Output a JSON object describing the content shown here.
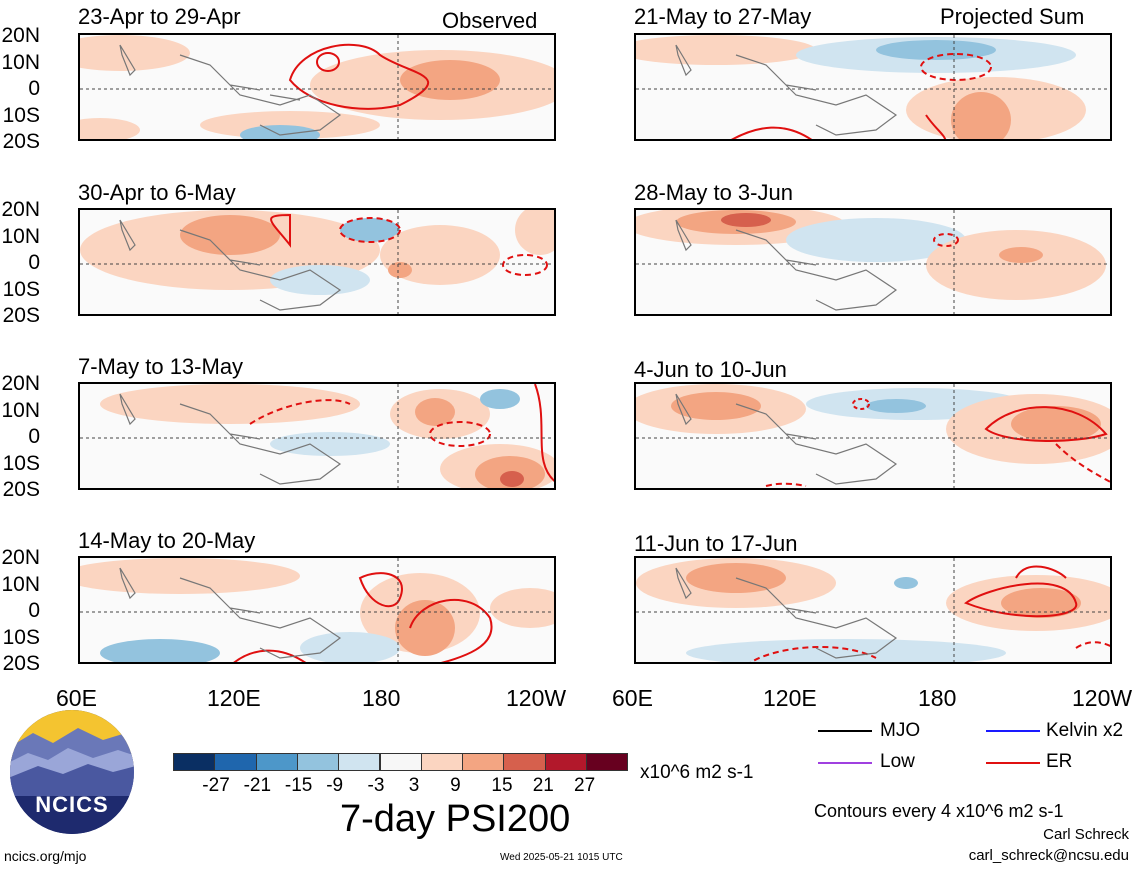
{
  "panels": {
    "left": [
      {
        "title": "23-Apr to 29-Apr",
        "tag": "Observed"
      },
      {
        "title": "30-Apr to 6-May",
        "tag": ""
      },
      {
        "title": "7-May to 13-May",
        "tag": ""
      },
      {
        "title": "14-May to 20-May",
        "tag": ""
      }
    ],
    "right": [
      {
        "title": "21-May to 27-May",
        "tag": "Projected Sum"
      },
      {
        "title": "28-May to 3-Jun",
        "tag": ""
      },
      {
        "title": "4-Jun to 10-Jun",
        "tag": ""
      },
      {
        "title": "11-Jun to 17-Jun",
        "tag": ""
      }
    ]
  },
  "lat_labels": [
    "20N",
    "10N",
    "0",
    "10S",
    "20S"
  ],
  "lon_labels": [
    "60E",
    "120E",
    "180",
    "120W"
  ],
  "colorbar": {
    "colors": [
      "#0a2f63",
      "#1f66ad",
      "#4d97c9",
      "#93c3de",
      "#d0e4f0",
      "#f7f7f7",
      "#fbd5c1",
      "#f3a582",
      "#d6604d",
      "#b2182b",
      "#67001f"
    ],
    "ticks": [
      "-27",
      "-21",
      "-15",
      "-9",
      "-3",
      "3",
      "9",
      "15",
      "21",
      "27"
    ],
    "units": "x10^6 m2 s-1"
  },
  "title": "7-day PSI200",
  "legend": [
    {
      "label": "MJO",
      "color": "#000000"
    },
    {
      "label": "Kelvin x2",
      "color": "#1a1aff"
    },
    {
      "label": "Low",
      "color": "#a040e0"
    },
    {
      "label": "ER",
      "color": "#e01010"
    }
  ],
  "contour_note": "Contours every 4 x10^6 m2 s-1",
  "author": "Carl Schreck",
  "email": "carl_schreck@ncsu.edu",
  "website": "ncics.org/mjo",
  "timestamp": "Wed 2025-05-21 1015 UTC",
  "logo_text": "NCICS"
}
